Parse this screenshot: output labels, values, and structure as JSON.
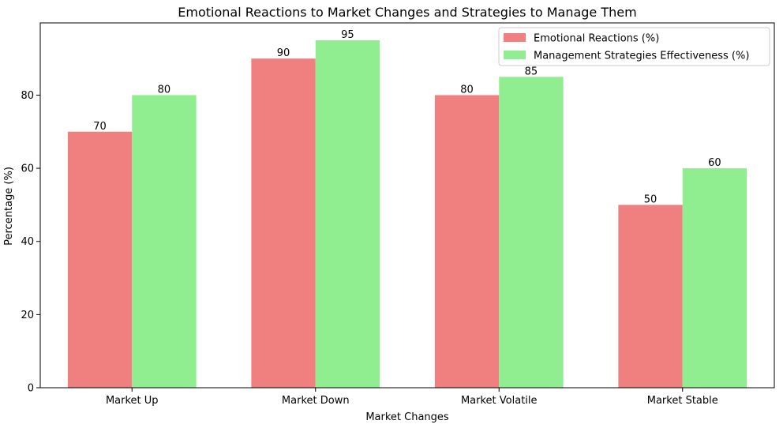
{
  "chart_data": {
    "type": "bar",
    "title": "Emotional Reactions to Market Changes and Strategies to Manage Them",
    "xlabel": "Market Changes",
    "ylabel": "Percentage (%)",
    "categories": [
      "Market Up",
      "Market Down",
      "Market Volatile",
      "Market Stable"
    ],
    "series": [
      {
        "name": "Emotional Reactions (%)",
        "values": [
          70,
          90,
          80,
          50
        ],
        "color": "#f08080"
      },
      {
        "name": "Management Strategies Effectiveness (%)",
        "values": [
          80,
          95,
          85,
          60
        ],
        "color": "#90ee90"
      }
    ],
    "ylim": [
      0,
      99.75
    ],
    "yticks": [
      0,
      20,
      40,
      60,
      80
    ],
    "grid": false,
    "legend_position": "top-right",
    "data_labels": true
  }
}
